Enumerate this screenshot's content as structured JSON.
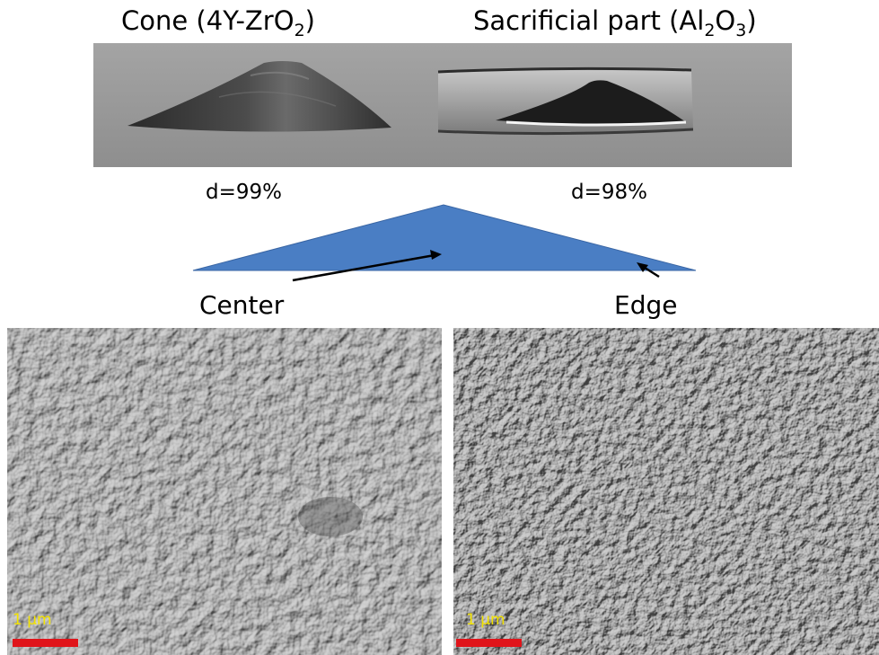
{
  "top": {
    "cone_title": {
      "prefix": "Cone  (4Y-ZrO",
      "sub": "2",
      "suffix": ")"
    },
    "sacrificial_title": {
      "prefix": "Sacrificial part (Al",
      "sub1": "2",
      "mid": "O",
      "sub2": "3",
      "suffix": ")"
    },
    "cone_density": "d=99%",
    "sacrificial_density": "d=98%"
  },
  "diagram": {
    "center_label": "Center",
    "edge_label": "Edge",
    "triangle_color": "#4a7ec4"
  },
  "micrographs": [
    {
      "name": "center",
      "scale_label": "1 µm",
      "scale_bar_color": "#e0141a"
    },
    {
      "name": "edge",
      "scale_label": "1 µm",
      "scale_bar_color": "#e0141a"
    }
  ]
}
